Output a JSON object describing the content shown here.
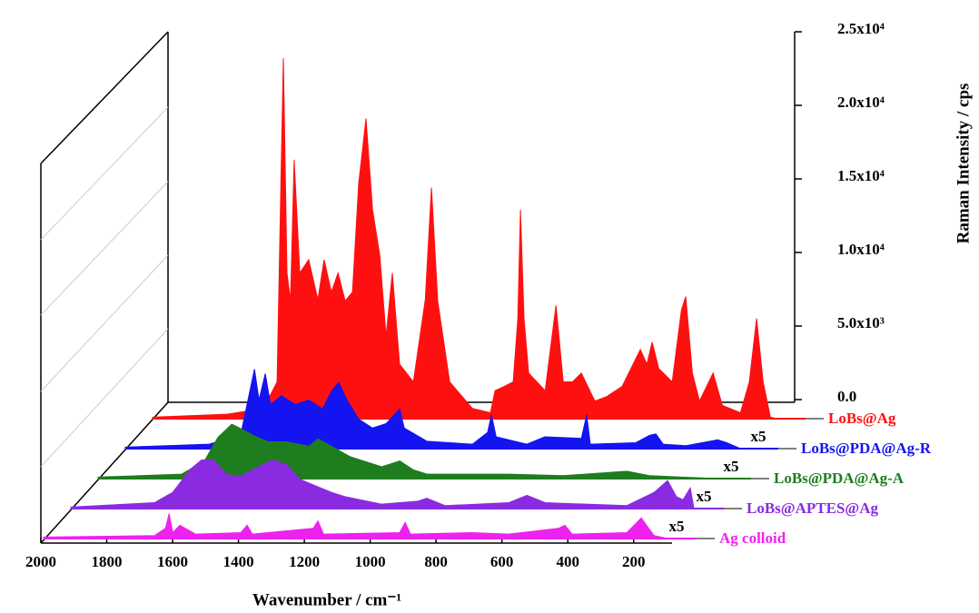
{
  "chart_data": {
    "type": "waterfall",
    "x_label": "Wavenumber / cm⁻¹",
    "y_label": "Raman Intensity / cps",
    "xlim": [
      2000,
      100
    ],
    "xticks": [
      2000,
      1800,
      1600,
      1400,
      1200,
      1000,
      800,
      600,
      400,
      200
    ],
    "ylim": [
      0,
      25000
    ],
    "yticks": [
      {
        "value": 0,
        "label": "0.0"
      },
      {
        "value": 5000,
        "label": "5.0x10³"
      },
      {
        "value": 10000,
        "label": "1.0x10⁴"
      },
      {
        "value": 15000,
        "label": "1.5x10⁴"
      },
      {
        "value": 20000,
        "label": "2.0x10⁴"
      },
      {
        "value": 25000,
        "label": "2.5x10⁴"
      }
    ],
    "annotations": [
      "x5",
      "x5",
      "x5",
      "x5"
    ],
    "series": [
      {
        "name": "LoBs@Ag",
        "color": "#ff1010",
        "x": [
          2000,
          1774,
          1663,
          1622,
          1603,
          1592,
          1581,
          1570,
          1553,
          1526,
          1498,
          1479,
          1457,
          1437,
          1415,
          1393,
          1374,
          1352,
          1332,
          1310,
          1291,
          1272,
          1250,
          1208,
          1172,
          1153,
          1134,
          1098,
          1029,
          974,
          960,
          932,
          905,
          891,
          883,
          872,
          858,
          808,
          775,
          753,
          725,
          698,
          657,
          621,
          574,
          519,
          499,
          483,
          463,
          422,
          394,
          381,
          361,
          339,
          298,
          270,
          215,
          188,
          166,
          146,
          124,
          105
        ],
        "values": [
          100,
          300,
          700,
          2500,
          24500,
          9900,
          8000,
          17600,
          9900,
          10800,
          8100,
          10800,
          8600,
          9900,
          8000,
          8600,
          16000,
          20400,
          14200,
          11100,
          5600,
          9900,
          3700,
          2500,
          8100,
          15700,
          8000,
          2500,
          700,
          400,
          1900,
          2200,
          2500,
          6800,
          14200,
          6800,
          3100,
          1900,
          7700,
          2500,
          2500,
          3100,
          1200,
          1500,
          2200,
          4700,
          3700,
          5200,
          3400,
          2500,
          7400,
          8300,
          3100,
          1200,
          3100,
          900,
          400,
          2500,
          6800,
          2500,
          100,
          0
        ]
      },
      {
        "name": "LoBs@PDA@Ag-R",
        "color": "#1414f0",
        "x": [
          2000,
          1746,
          1650,
          1608,
          1594,
          1575,
          1559,
          1526,
          1484,
          1443,
          1401,
          1374,
          1352,
          1327,
          1291,
          1250,
          1208,
          1167,
          1153,
          1084,
          946,
          900,
          888,
          874,
          781,
          726,
          615,
          599,
          588,
          450,
          408,
          389,
          367,
          298,
          201,
          174,
          132
        ],
        "values": [
          100,
          300,
          900,
          5400,
          3300,
          5100,
          3000,
          3600,
          3000,
          3300,
          2700,
          3900,
          4500,
          3300,
          2000,
          1400,
          1700,
          2700,
          1400,
          500,
          300,
          1100,
          2300,
          800,
          300,
          800,
          700,
          2300,
          300,
          400,
          900,
          1000,
          300,
          200,
          600,
          400,
          0
        ]
      },
      {
        "name": "LoBs@PDA@Ag-A",
        "color": "#1e7d1e",
        "x": [
          2000,
          1746,
          1677,
          1636,
          1594,
          1567,
          1526,
          1484,
          1429,
          1360,
          1332,
          1291,
          1236,
          1194,
          1139,
          1084,
          1043,
          1001,
          753,
          588,
          394,
          326,
          119
        ],
        "values": [
          100,
          300,
          1200,
          2800,
          3700,
          3400,
          2900,
          2500,
          2500,
          2200,
          2700,
          2200,
          1500,
          1200,
          800,
          1200,
          600,
          300,
          300,
          200,
          500,
          200,
          0
        ]
      },
      {
        "name": "LoBs@APTES@Ag",
        "color": "#8a2be2",
        "x": [
          2000,
          1746,
          1691,
          1636,
          1603,
          1567,
          1526,
          1484,
          1443,
          1388,
          1346,
          1305,
          1263,
          1208,
          1167,
          1057,
          946,
          919,
          863,
          670,
          615,
          560,
          312,
          229,
          188,
          161,
          141,
          119,
          108
        ],
        "values": [
          100,
          400,
          1100,
          2700,
          3300,
          3300,
          2300,
          2200,
          2700,
          3300,
          3000,
          2000,
          1600,
          1100,
          800,
          300,
          500,
          700,
          200,
          400,
          900,
          400,
          200,
          1100,
          1900,
          800,
          600,
          1400,
          0
        ]
      },
      {
        "name": "Ag colloid",
        "color": "#ee22ee",
        "x": [
          2000,
          1663,
          1630,
          1619,
          1608,
          1586,
          1539,
          1401,
          1382,
          1366,
          1181,
          1167,
          1150,
          919,
          902,
          886,
          698,
          588,
          436,
          417,
          395,
          229,
          185,
          163,
          146,
          105
        ],
        "values": [
          100,
          200,
          700,
          1700,
          400,
          900,
          300,
          400,
          900,
          300,
          700,
          1200,
          300,
          400,
          1100,
          300,
          400,
          300,
          700,
          900,
          300,
          400,
          1400,
          700,
          200,
          0
        ]
      }
    ]
  }
}
